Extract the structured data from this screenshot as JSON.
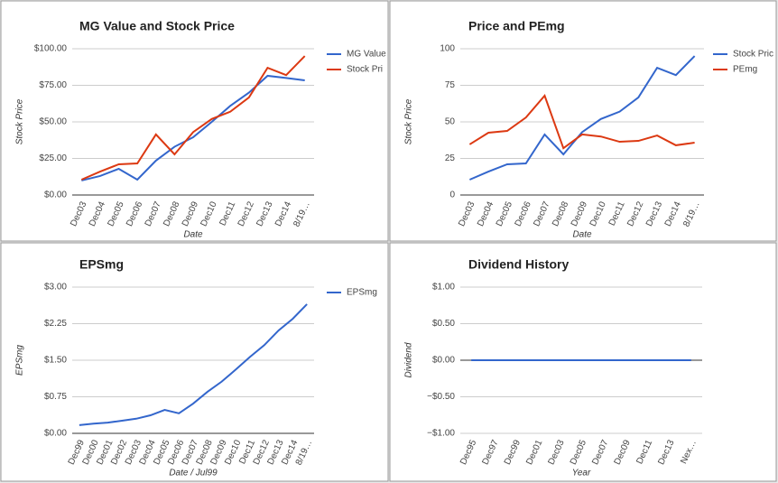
{
  "chart_data": [
    {
      "type": "line",
      "title": "MG Value and Stock Price",
      "y_label": "Stock Price",
      "x_label": "Date",
      "categories": [
        "Dec03",
        "Dec04",
        "Dec05",
        "Dec06",
        "Dec07",
        "Dec08",
        "Dec09",
        "Dec10",
        "Dec11",
        "Dec12",
        "Dec13",
        "Dec14",
        "8/19…"
      ],
      "series": [
        {
          "name": "MG Value",
          "color": "#3366cc",
          "values": [
            9.9,
            13,
            17.9,
            10.5,
            23.5,
            33,
            39.5,
            50,
            61,
            70,
            81.5,
            80,
            78.4
          ]
        },
        {
          "name": "Stock Pri",
          "color": "#dc3912",
          "values": [
            10.5,
            16,
            21,
            21.6,
            41.4,
            27.8,
            43,
            52,
            57,
            66.7,
            87,
            82,
            95
          ]
        }
      ],
      "ylim": [
        0,
        100
      ],
      "yticks": [
        {
          "value": 0,
          "label": "$0.00"
        },
        {
          "value": 25,
          "label": "$25.00"
        },
        {
          "value": 50,
          "label": "$50.00"
        },
        {
          "value": 75,
          "label": "$75.00"
        },
        {
          "value": 100,
          "label": "$100.00"
        }
      ],
      "grid": true,
      "legend": "right"
    },
    {
      "type": "line",
      "title": "Price and PEmg",
      "y_label": "Stock Price",
      "x_label": "Date",
      "categories": [
        "Dec03",
        "Dec04",
        "Dec05",
        "Dec06",
        "Dec07",
        "Dec08",
        "Dec09",
        "Dec10",
        "Dec11",
        "Dec12",
        "Dec13",
        "Dec14",
        "8/19…"
      ],
      "series": [
        {
          "name": "Stock Pric",
          "color": "#3366cc",
          "values": [
            10.5,
            16,
            21,
            21.6,
            41.4,
            27.8,
            43,
            52,
            57,
            66.7,
            87,
            82,
            95
          ]
        },
        {
          "name": "PEmg",
          "color": "#dc3912",
          "values": [
            34.6,
            42.6,
            43.8,
            53,
            67.9,
            32,
            41.4,
            40,
            36.4,
            37,
            40.7,
            34,
            35.8
          ]
        }
      ],
      "ylim": [
        0,
        100
      ],
      "yticks": [
        0,
        25,
        50,
        75,
        100
      ],
      "grid": true,
      "legend": "right"
    },
    {
      "type": "line",
      "title": "EPSmg",
      "y_label": "EPSmg",
      "x_label": "Date / Jul99",
      "categories": [
        "Dec99",
        "Dec00",
        "Dec01",
        "Dec02",
        "Dec03",
        "Dec04",
        "Dec05",
        "Dec06",
        "Dec07",
        "Dec08",
        "Dec09",
        "Dec10",
        "Dec11",
        "Dec12",
        "Dec13",
        "Dec14",
        "8/19…"
      ],
      "series": [
        {
          "name": "EPSmg",
          "color": "#3366cc",
          "values": [
            0.17,
            0.2,
            0.22,
            0.26,
            0.3,
            0.37,
            0.48,
            0.41,
            0.61,
            0.85,
            1.06,
            1.31,
            1.57,
            1.81,
            2.11,
            2.35,
            2.65
          ]
        }
      ],
      "ylim": [
        0,
        3
      ],
      "yticks": [
        {
          "value": 0,
          "label": "$0.00"
        },
        {
          "value": 0.75,
          "label": "$0.75"
        },
        {
          "value": 1.5,
          "label": "$1.50"
        },
        {
          "value": 2.25,
          "label": "$2.25"
        },
        {
          "value": 3,
          "label": "$3.00"
        }
      ],
      "grid": true,
      "legend": "right"
    },
    {
      "type": "line",
      "title": "Dividend History",
      "y_label": "Dividend",
      "x_label": "Year",
      "categories": [
        "Dec95",
        "Dec97",
        "Dec99",
        "Dec01",
        "Dec03",
        "Dec05",
        "Dec07",
        "Dec09",
        "Dec11",
        "Dec13",
        "Nex…"
      ],
      "series": [
        {
          "color": "#3366cc",
          "values": [
            0,
            0,
            0,
            0,
            0,
            0,
            0,
            0,
            0,
            0,
            0
          ]
        }
      ],
      "ylim": [
        -1,
        1
      ],
      "yticks": [
        {
          "value": -1,
          "label": "−$1.00"
        },
        {
          "value": -0.5,
          "label": "−$0.50"
        },
        {
          "value": 0,
          "label": "$0.00"
        },
        {
          "value": 0.5,
          "label": "$0.50"
        },
        {
          "value": 1,
          "label": "$1.00"
        }
      ],
      "grid": true
    }
  ]
}
